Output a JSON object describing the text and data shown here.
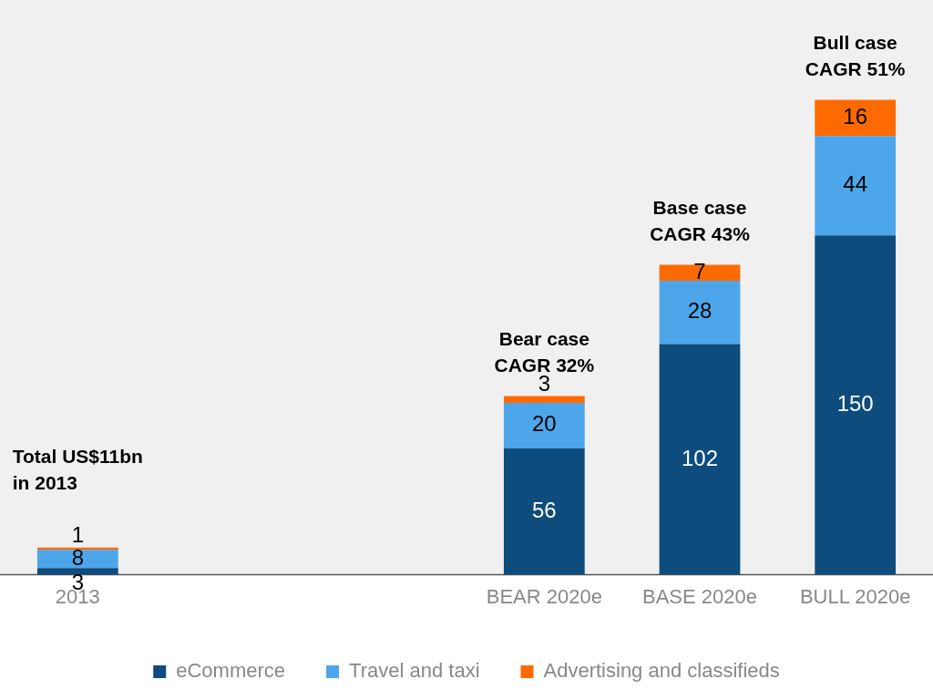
{
  "chart_data": {
    "type": "bar",
    "stacked": true,
    "data_labels": true,
    "legend": "bottom",
    "categories": [
      "2013",
      null,
      null,
      "BEAR 2020e",
      "BASE 2020e",
      "BULL 2020e"
    ],
    "series": [
      {
        "name": "eCommerce",
        "color": "#0d4c7d",
        "values": [
          3,
          null,
          null,
          56,
          102,
          150
        ]
      },
      {
        "name": "Travel and taxi",
        "color": "#4ea6ea",
        "values": [
          8,
          null,
          null,
          20,
          28,
          44
        ]
      },
      {
        "name": "Advertising and classifieds",
        "color": "#ff6a00",
        "values": [
          1,
          null,
          null,
          3,
          7,
          16
        ]
      }
    ],
    "annotations": [
      {
        "text": "Total US$11bn\nin 2013",
        "x": "2013",
        "y": 12
      },
      {
        "text": "Bear case\nCAGR 32%",
        "x": "BEAR 2020e",
        "y": 79
      },
      {
        "text": "Base case\nCAGR 43%",
        "x": "BASE 2020e",
        "y": 137
      },
      {
        "text": "Bull case\nCAGR 51%",
        "x": "BULL 2020e",
        "y": 210
      }
    ]
  }
}
